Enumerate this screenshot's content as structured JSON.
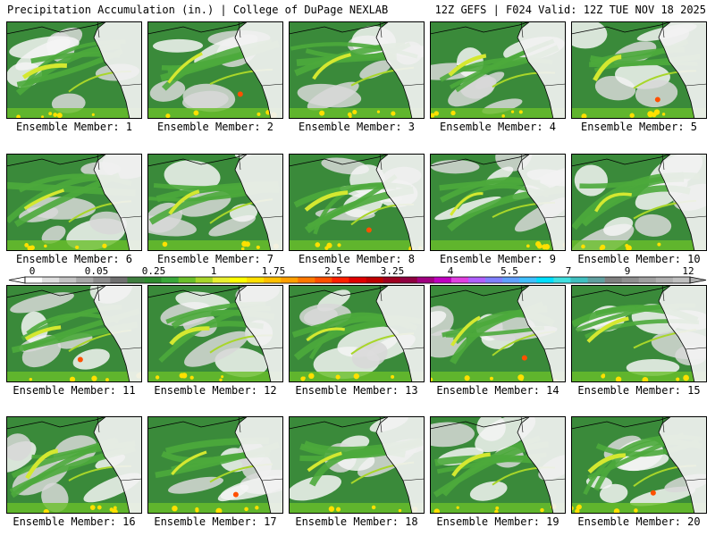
{
  "header": {
    "left": "Precipitation Accumulation (in.) | College of DuPage NEXLAB",
    "right": "12Z GEFS | F024 Valid: 12Z TUE NOV 18 2025"
  },
  "panels": [
    {
      "label": "Ensemble Member: 1"
    },
    {
      "label": "Ensemble Member: 2"
    },
    {
      "label": "Ensemble Member: 3"
    },
    {
      "label": "Ensemble Member: 4"
    },
    {
      "label": "Ensemble Member: 5"
    },
    {
      "label": "Ensemble Member: 6"
    },
    {
      "label": "Ensemble Member: 7"
    },
    {
      "label": "Ensemble Member: 8"
    },
    {
      "label": "Ensemble Member: 9"
    },
    {
      "label": "Ensemble Member: 10"
    },
    {
      "label": "Ensemble Member: 11"
    },
    {
      "label": "Ensemble Member: 12"
    },
    {
      "label": "Ensemble Member: 13"
    },
    {
      "label": "Ensemble Member: 14"
    },
    {
      "label": "Ensemble Member: 15"
    },
    {
      "label": "Ensemble Member: 16"
    },
    {
      "label": "Ensemble Member: 17"
    },
    {
      "label": "Ensemble Member: 18"
    },
    {
      "label": "Ensemble Member: 19"
    },
    {
      "label": "Ensemble Member: 20"
    }
  ],
  "colorbar": {
    "labels": [
      "0",
      "0.05",
      "0.25",
      "1",
      "1.75",
      "2.5",
      "3.25",
      "4",
      "5.5",
      "7",
      "9",
      "12"
    ],
    "colors": [
      "#ffffff",
      "#e0e0e0",
      "#c4c4c4",
      "#a8a8a8",
      "#8c8c8c",
      "#707070",
      "#3f7f3f",
      "#2e8b2e",
      "#3aa83a",
      "#6abf2a",
      "#a8d62a",
      "#e8f030",
      "#ffff00",
      "#ffe000",
      "#ffc000",
      "#ffa000",
      "#ff7800",
      "#ff5000",
      "#ff2000",
      "#e00000",
      "#c00000",
      "#a00020",
      "#900040",
      "#a00080",
      "#c000c0",
      "#e040e0",
      "#b060ff",
      "#8080ff",
      "#60a0ff",
      "#40c0ff",
      "#00e0ff",
      "#40e0e0",
      "#40c0c0",
      "#60a0a0",
      "#808080",
      "#909090",
      "#a0a0a0",
      "#b0b0b0",
      "#c0c0c0"
    ]
  }
}
